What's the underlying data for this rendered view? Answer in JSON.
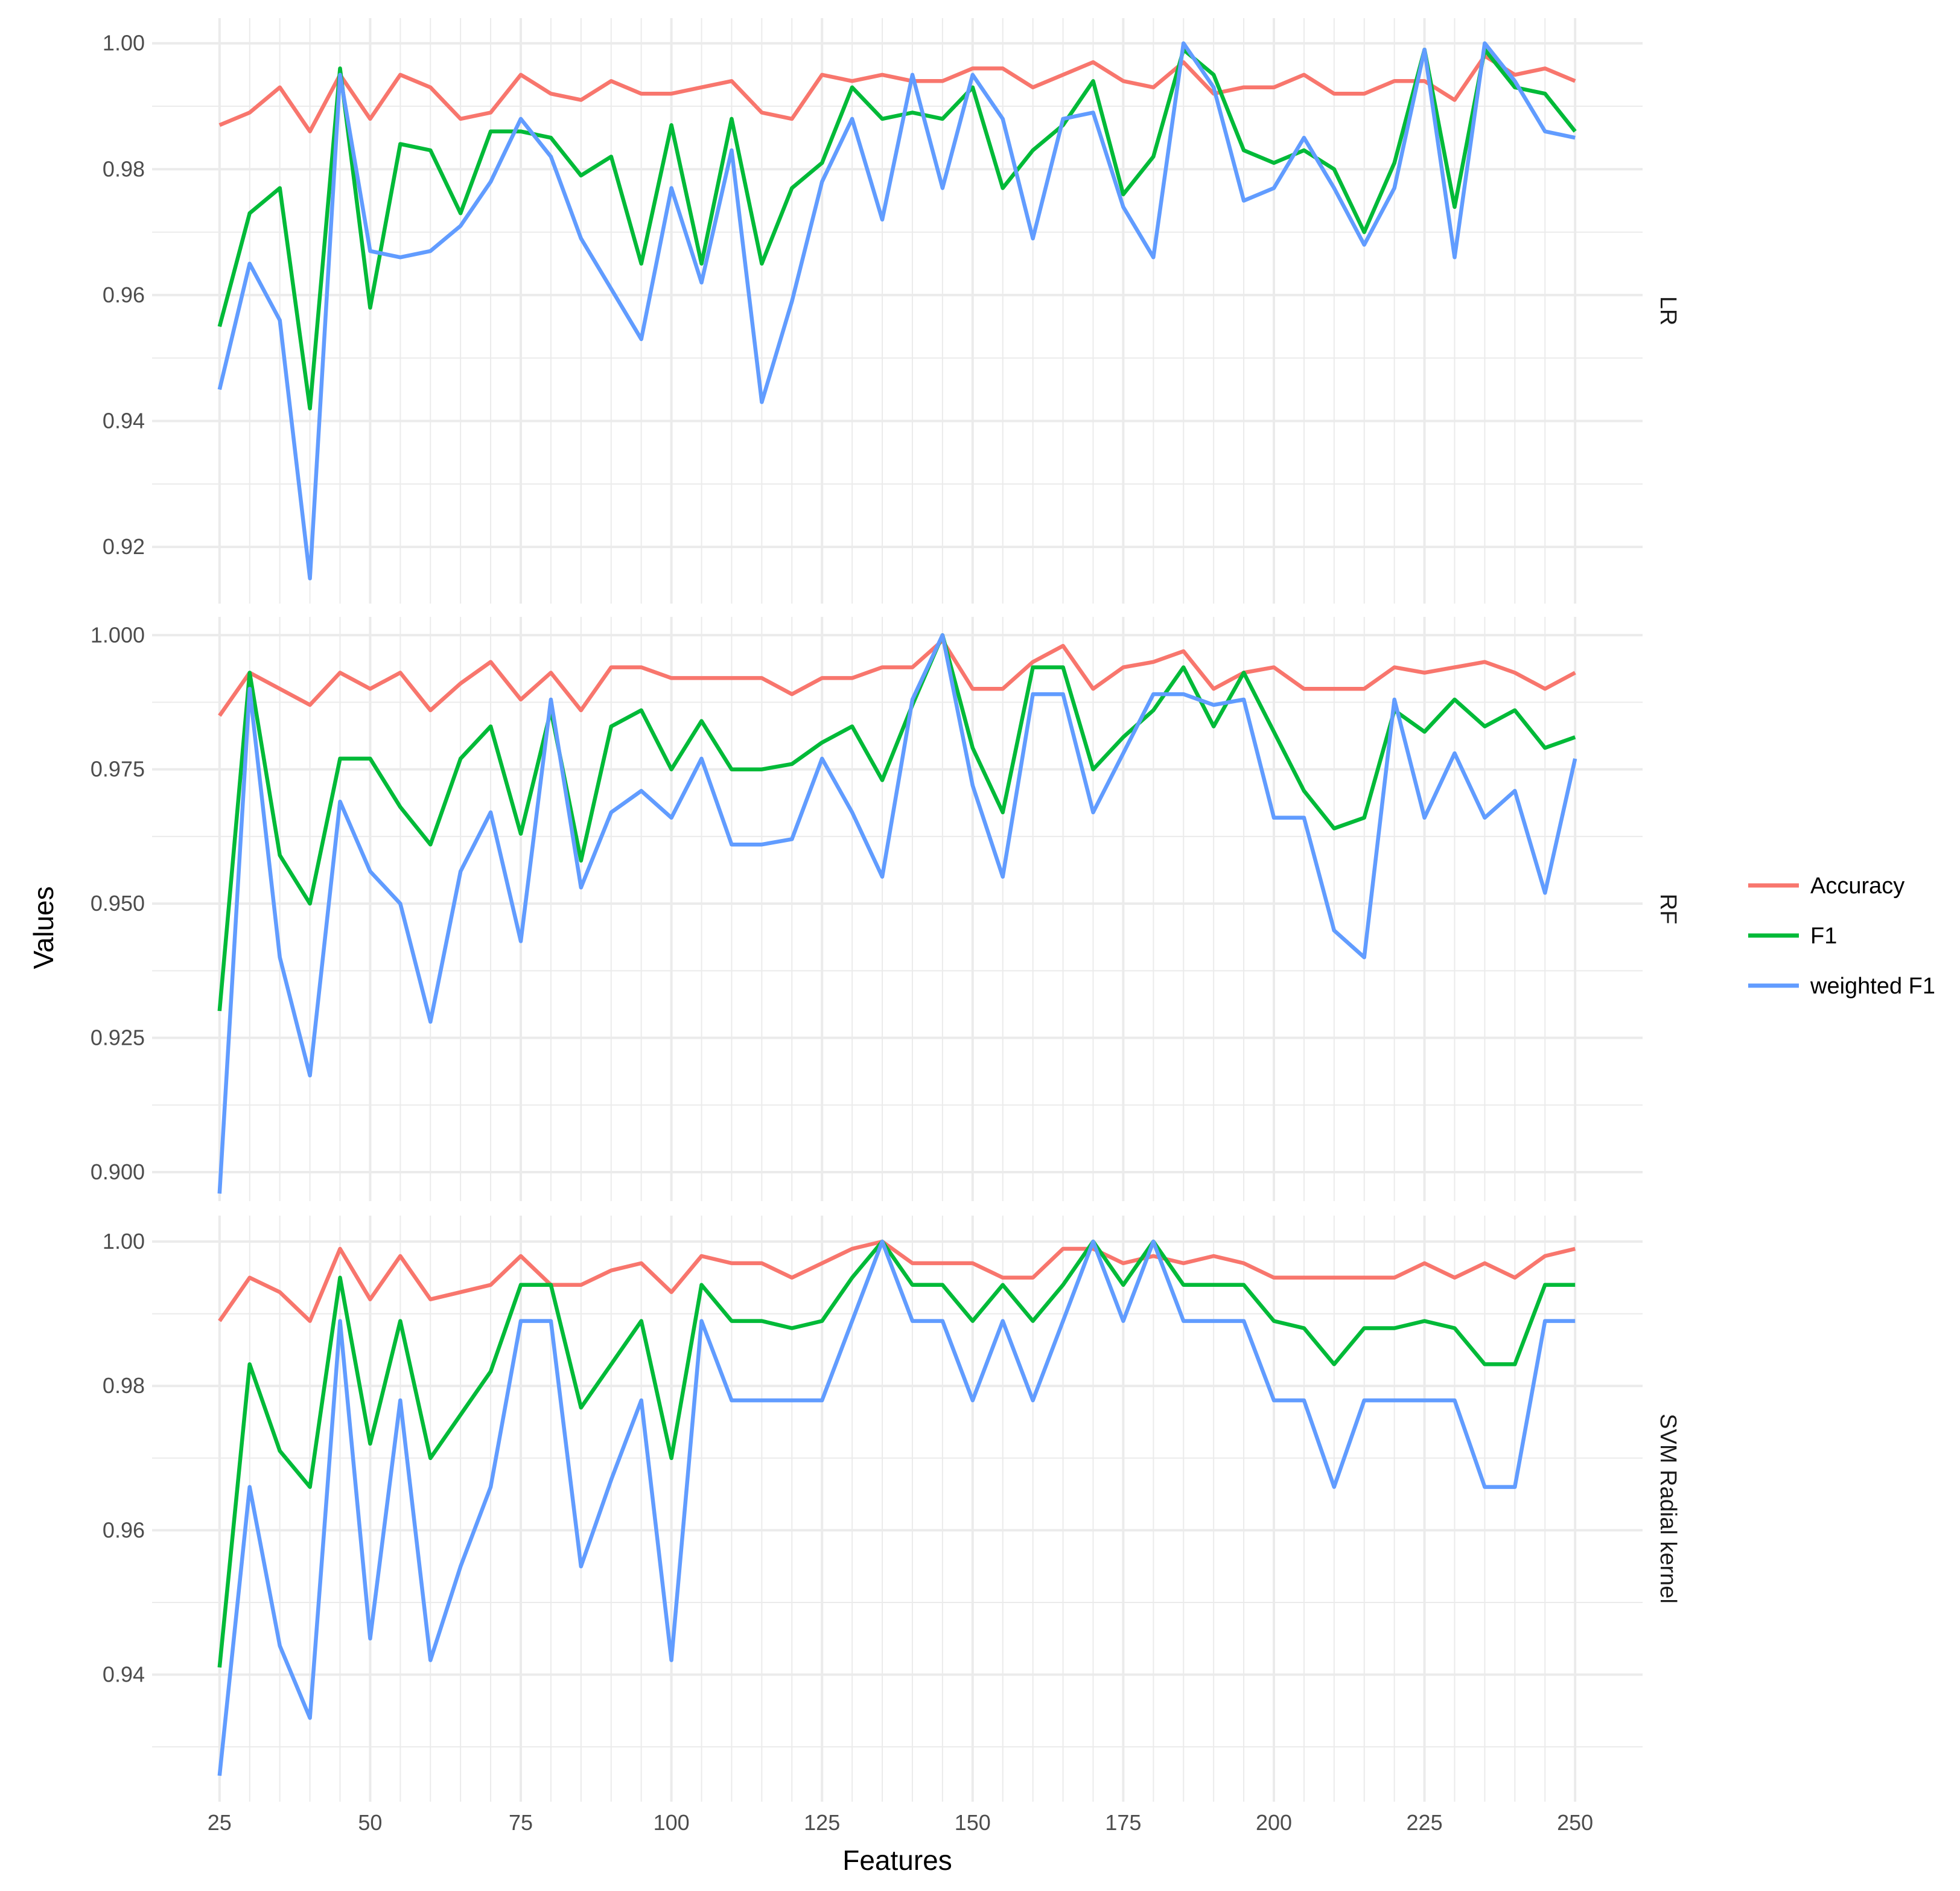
{
  "chart_data": {
    "type": "line",
    "xlabel": "Features",
    "ylabel": "Values",
    "x": [
      25,
      30,
      35,
      40,
      45,
      50,
      55,
      60,
      65,
      70,
      75,
      80,
      85,
      90,
      95,
      100,
      105,
      110,
      115,
      120,
      125,
      130,
      135,
      140,
      145,
      150,
      155,
      160,
      165,
      170,
      175,
      180,
      185,
      190,
      195,
      200,
      205,
      210,
      215,
      220,
      225,
      230,
      235,
      240,
      245,
      250
    ],
    "x_ticks": [
      25,
      50,
      75,
      100,
      125,
      150,
      175,
      200,
      225,
      250
    ],
    "xlim": [
      13.8,
      261.2
    ],
    "legend": {
      "position": "right",
      "entries": [
        {
          "name": "Accuracy",
          "color": "#F8766D"
        },
        {
          "name": "F1",
          "color": "#00BA38"
        },
        {
          "name": "weighted F1",
          "color": "#619CFF"
        }
      ]
    },
    "panels": [
      {
        "strip": "LR",
        "ylim": [
          0.911,
          1.004
        ],
        "y_ticks": [
          0.92,
          0.94,
          0.96,
          0.98,
          1.0
        ],
        "y_tick_labels": [
          "0.92",
          "0.94",
          "0.96",
          "0.98",
          "1.00"
        ],
        "series": [
          {
            "name": "Accuracy",
            "values": [
              0.987,
              0.989,
              0.993,
              0.986,
              0.995,
              0.988,
              0.995,
              0.993,
              0.988,
              0.989,
              0.995,
              0.992,
              0.991,
              0.994,
              0.992,
              0.992,
              0.993,
              0.994,
              0.989,
              0.988,
              0.995,
              0.994,
              0.995,
              0.994,
              0.994,
              0.996,
              0.996,
              0.993,
              0.995,
              0.997,
              0.994,
              0.993,
              0.997,
              0.992,
              0.993,
              0.993,
              0.995,
              0.992,
              0.992,
              0.994,
              0.994,
              0.991,
              0.998,
              0.995,
              0.996,
              0.994
            ]
          },
          {
            "name": "F1",
            "values": [
              0.955,
              0.973,
              0.977,
              0.942,
              0.996,
              0.958,
              0.984,
              0.983,
              0.973,
              0.986,
              0.986,
              0.985,
              0.979,
              0.982,
              0.965,
              0.987,
              0.965,
              0.988,
              0.965,
              0.977,
              0.981,
              0.993,
              0.988,
              0.989,
              0.988,
              0.993,
              0.977,
              0.983,
              0.987,
              0.994,
              0.976,
              0.982,
              0.999,
              0.995,
              0.983,
              0.981,
              0.983,
              0.98,
              0.97,
              0.981,
              0.999,
              0.974,
              0.999,
              0.993,
              0.992,
              0.986
            ]
          },
          {
            "name": "weighted F1",
            "values": [
              0.945,
              0.965,
              0.956,
              0.915,
              0.995,
              0.967,
              0.966,
              0.967,
              0.971,
              0.978,
              0.988,
              0.982,
              0.969,
              0.961,
              0.953,
              0.977,
              0.962,
              0.983,
              0.943,
              0.959,
              0.978,
              0.988,
              0.972,
              0.995,
              0.977,
              0.995,
              0.988,
              0.969,
              0.988,
              0.989,
              0.974,
              0.966,
              1.0,
              0.993,
              0.975,
              0.977,
              0.985,
              0.977,
              0.968,
              0.977,
              0.999,
              0.966,
              1.0,
              0.994,
              0.986,
              0.985
            ]
          }
        ]
      },
      {
        "strip": "RF",
        "ylim": [
          0.8946,
          1.0034
        ],
        "y_ticks": [
          0.9,
          0.925,
          0.95,
          0.975,
          1.0
        ],
        "y_tick_labels": [
          "0.900",
          "0.925",
          "0.950",
          "0.975",
          "1.000"
        ],
        "series": [
          {
            "name": "Accuracy",
            "values": [
              0.985,
              0.993,
              0.99,
              0.987,
              0.993,
              0.99,
              0.993,
              0.986,
              0.991,
              0.995,
              0.988,
              0.993,
              0.986,
              0.994,
              0.994,
              0.992,
              0.992,
              0.992,
              0.992,
              0.989,
              0.992,
              0.992,
              0.994,
              0.994,
              0.999,
              0.99,
              0.99,
              0.995,
              0.998,
              0.99,
              0.994,
              0.995,
              0.997,
              0.99,
              0.993,
              0.994,
              0.99,
              0.99,
              0.99,
              0.994,
              0.993,
              0.994,
              0.995,
              0.993,
              0.99,
              0.993
            ]
          },
          {
            "name": "F1",
            "values": [
              0.93,
              0.993,
              0.959,
              0.95,
              0.977,
              0.977,
              0.968,
              0.961,
              0.977,
              0.983,
              0.963,
              0.986,
              0.958,
              0.983,
              0.986,
              0.975,
              0.984,
              0.975,
              0.975,
              0.976,
              0.98,
              0.983,
              0.973,
              0.987,
              1.0,
              0.979,
              0.967,
              0.994,
              0.994,
              0.975,
              0.981,
              0.986,
              0.994,
              0.983,
              0.993,
              0.982,
              0.971,
              0.964,
              0.966,
              0.986,
              0.982,
              0.988,
              0.983,
              0.986,
              0.979,
              0.981
            ]
          },
          {
            "name": "weighted F1",
            "values": [
              0.896,
              0.99,
              0.94,
              0.918,
              0.969,
              0.956,
              0.95,
              0.928,
              0.956,
              0.967,
              0.943,
              0.988,
              0.953,
              0.967,
              0.971,
              0.966,
              0.977,
              0.961,
              0.961,
              0.962,
              0.977,
              0.967,
              0.955,
              0.988,
              1.0,
              0.972,
              0.955,
              0.989,
              0.989,
              0.967,
              0.978,
              0.989,
              0.989,
              0.987,
              0.988,
              0.966,
              0.966,
              0.945,
              0.94,
              0.988,
              0.966,
              0.978,
              0.966,
              0.971,
              0.952,
              0.977
            ]
          }
        ]
      },
      {
        "strip": "SVM Radial kernel",
        "ylim": [
          0.9224,
          1.0036
        ],
        "y_ticks": [
          0.94,
          0.96,
          0.98,
          1.0
        ],
        "y_tick_labels": [
          "0.94",
          "0.96",
          "0.98",
          "1.00"
        ],
        "series": [
          {
            "name": "Accuracy",
            "values": [
              0.989,
              0.995,
              0.993,
              0.989,
              0.999,
              0.992,
              0.998,
              0.992,
              0.993,
              0.994,
              0.998,
              0.994,
              0.994,
              0.996,
              0.997,
              0.993,
              0.998,
              0.997,
              0.997,
              0.995,
              0.997,
              0.999,
              1.0,
              0.997,
              0.997,
              0.997,
              0.995,
              0.995,
              0.999,
              0.999,
              0.997,
              0.998,
              0.997,
              0.998,
              0.997,
              0.995,
              0.995,
              0.995,
              0.995,
              0.995,
              0.997,
              0.995,
              0.997,
              0.995,
              0.998,
              0.999
            ]
          },
          {
            "name": "F1",
            "values": [
              0.941,
              0.983,
              0.971,
              0.966,
              0.995,
              0.972,
              0.989,
              0.97,
              0.976,
              0.982,
              0.994,
              0.994,
              0.977,
              0.983,
              0.989,
              0.97,
              0.994,
              0.989,
              0.989,
              0.988,
              0.989,
              0.995,
              1.0,
              0.994,
              0.994,
              0.989,
              0.994,
              0.989,
              0.994,
              1.0,
              0.994,
              1.0,
              0.994,
              0.994,
              0.994,
              0.989,
              0.988,
              0.983,
              0.988,
              0.988,
              0.989,
              0.988,
              0.983,
              0.983,
              0.994,
              0.994
            ]
          },
          {
            "name": "weighted F1",
            "values": [
              0.926,
              0.966,
              0.944,
              0.934,
              0.989,
              0.945,
              0.978,
              0.942,
              0.955,
              0.966,
              0.989,
              0.989,
              0.955,
              0.967,
              0.978,
              0.942,
              0.989,
              0.978,
              0.978,
              0.978,
              0.978,
              0.989,
              1.0,
              0.989,
              0.989,
              0.978,
              0.989,
              0.978,
              0.989,
              1.0,
              0.989,
              1.0,
              0.989,
              0.989,
              0.989,
              0.978,
              0.978,
              0.966,
              0.978,
              0.978,
              0.978,
              0.978,
              0.966,
              0.966,
              0.989,
              0.989
            ]
          }
        ]
      }
    ]
  }
}
